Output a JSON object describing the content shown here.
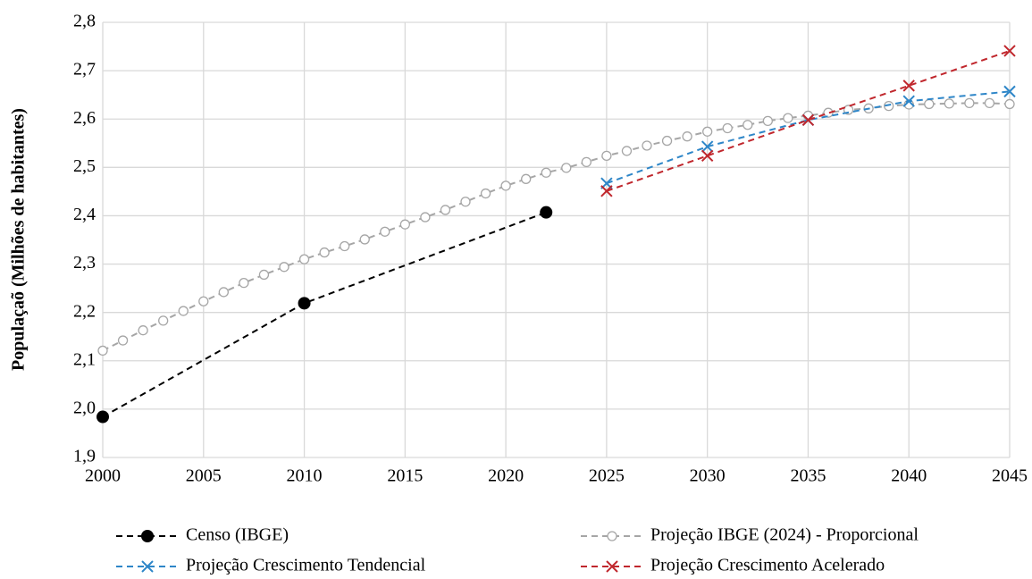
{
  "chart_data": {
    "type": "line",
    "ylabel": "Populaçaõ (Milhões de habitantes)",
    "xlim": [
      2000,
      2045
    ],
    "xticks": [
      2000,
      2005,
      2010,
      2015,
      2020,
      2025,
      2030,
      2035,
      2040,
      2045
    ],
    "ylim": [
      1.9,
      2.8
    ],
    "yticks": [
      {
        "value": 1.9,
        "label": "1,9"
      },
      {
        "value": 2.0,
        "label": "2,0"
      },
      {
        "value": 2.1,
        "label": "2,1"
      },
      {
        "value": 2.2,
        "label": "2,2"
      },
      {
        "value": 2.3,
        "label": "2,3"
      },
      {
        "value": 2.4,
        "label": "2,4"
      },
      {
        "value": 2.5,
        "label": "2,5"
      },
      {
        "value": 2.6,
        "label": "2,6"
      },
      {
        "value": 2.7,
        "label": "2,7"
      },
      {
        "value": 2.8,
        "label": "2,8"
      }
    ],
    "grid": true,
    "legend": "bottom",
    "series": [
      {
        "name": "Censo (IBGE)",
        "color": "#000000",
        "marker": "filled-circle",
        "x": [
          2000,
          2010,
          2022
        ],
        "values": [
          1.984,
          2.219,
          2.407
        ]
      },
      {
        "name": "Projeção IBGE (2024) - Proporcional",
        "color": "#a6a6a6",
        "marker": "open-circle",
        "x": [
          2000,
          2001,
          2002,
          2003,
          2004,
          2005,
          2006,
          2007,
          2008,
          2009,
          2010,
          2011,
          2012,
          2013,
          2014,
          2015,
          2016,
          2017,
          2018,
          2019,
          2020,
          2021,
          2022,
          2023,
          2024,
          2025,
          2026,
          2027,
          2028,
          2029,
          2030,
          2031,
          2032,
          2033,
          2034,
          2035,
          2036,
          2037,
          2038,
          2039,
          2040,
          2041,
          2042,
          2043,
          2044,
          2045
        ],
        "values": [
          2.121,
          2.142,
          2.163,
          2.183,
          2.203,
          2.223,
          2.242,
          2.261,
          2.278,
          2.294,
          2.31,
          2.324,
          2.337,
          2.351,
          2.367,
          2.382,
          2.397,
          2.412,
          2.429,
          2.446,
          2.462,
          2.476,
          2.489,
          2.499,
          2.511,
          2.524,
          2.534,
          2.545,
          2.555,
          2.564,
          2.574,
          2.581,
          2.588,
          2.596,
          2.602,
          2.607,
          2.613,
          2.619,
          2.622,
          2.627,
          2.63,
          2.631,
          2.632,
          2.633,
          2.633,
          2.631
        ]
      },
      {
        "name": "Projeção Crescimento Tendencial",
        "color": "#2e86c8",
        "marker": "x",
        "x": [
          2025,
          2030,
          2035,
          2040,
          2045
        ],
        "values": [
          2.467,
          2.543,
          2.598,
          2.637,
          2.657
        ]
      },
      {
        "name": "Projeção Crescimento Acelerado",
        "color": "#c0272d",
        "marker": "x",
        "x": [
          2025,
          2030,
          2035,
          2040,
          2045
        ],
        "values": [
          2.451,
          2.524,
          2.598,
          2.669,
          2.741
        ]
      }
    ]
  }
}
